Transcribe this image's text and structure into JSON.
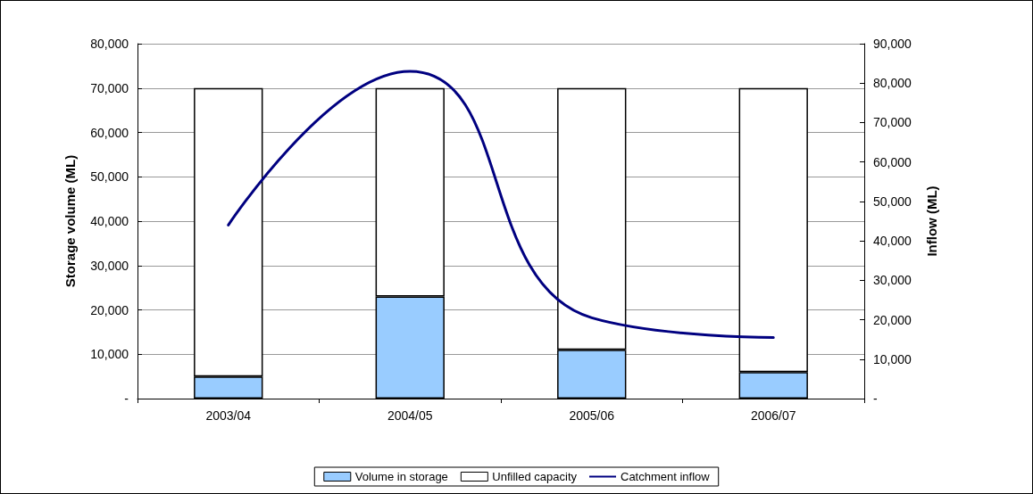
{
  "chart_data": {
    "type": "bar",
    "stacked": true,
    "categories": [
      "2003/04",
      "2004/05",
      "2005/06",
      "2006/07"
    ],
    "series": [
      {
        "name": "Volume in storage",
        "color": "#99ccff",
        "values": [
          5000,
          23000,
          11000,
          6000
        ]
      },
      {
        "name": "Unfilled capacity",
        "color": "#ffffff",
        "values": [
          65000,
          47000,
          59000,
          64000
        ]
      },
      {
        "name": "Catchment inflow",
        "type": "line",
        "axis": "y2",
        "color": "#000080",
        "values": [
          44000,
          83000,
          20500,
          15500
        ]
      }
    ],
    "ylabel": "Storage volume (ML)",
    "y2label": "Inflow (ML)",
    "ylim": [
      0,
      80000
    ],
    "yticks": [
      {
        "value": 0,
        "label": "-"
      },
      {
        "value": 10000,
        "label": "10,000"
      },
      {
        "value": 20000,
        "label": "20,000"
      },
      {
        "value": 30000,
        "label": "30,000"
      },
      {
        "value": 40000,
        "label": "40,000"
      },
      {
        "value": 50000,
        "label": "50,000"
      },
      {
        "value": 60000,
        "label": "60,000"
      },
      {
        "value": 70000,
        "label": "70,000"
      },
      {
        "value": 80000,
        "label": "80,000"
      }
    ],
    "y2lim": [
      0,
      90000
    ],
    "y2ticks": [
      {
        "value": 0,
        "label": "-"
      },
      {
        "value": 10000,
        "label": "10,000"
      },
      {
        "value": 20000,
        "label": "20,000"
      },
      {
        "value": 30000,
        "label": "30,000"
      },
      {
        "value": 40000,
        "label": "40,000"
      },
      {
        "value": 50000,
        "label": "50,000"
      },
      {
        "value": 60000,
        "label": "60,000"
      },
      {
        "value": 70000,
        "label": "70,000"
      },
      {
        "value": 80000,
        "label": "80,000"
      },
      {
        "value": 90000,
        "label": "90,000"
      }
    ],
    "grid": "y",
    "legend": "bottom",
    "marker": "none",
    "line_style": "solid"
  }
}
